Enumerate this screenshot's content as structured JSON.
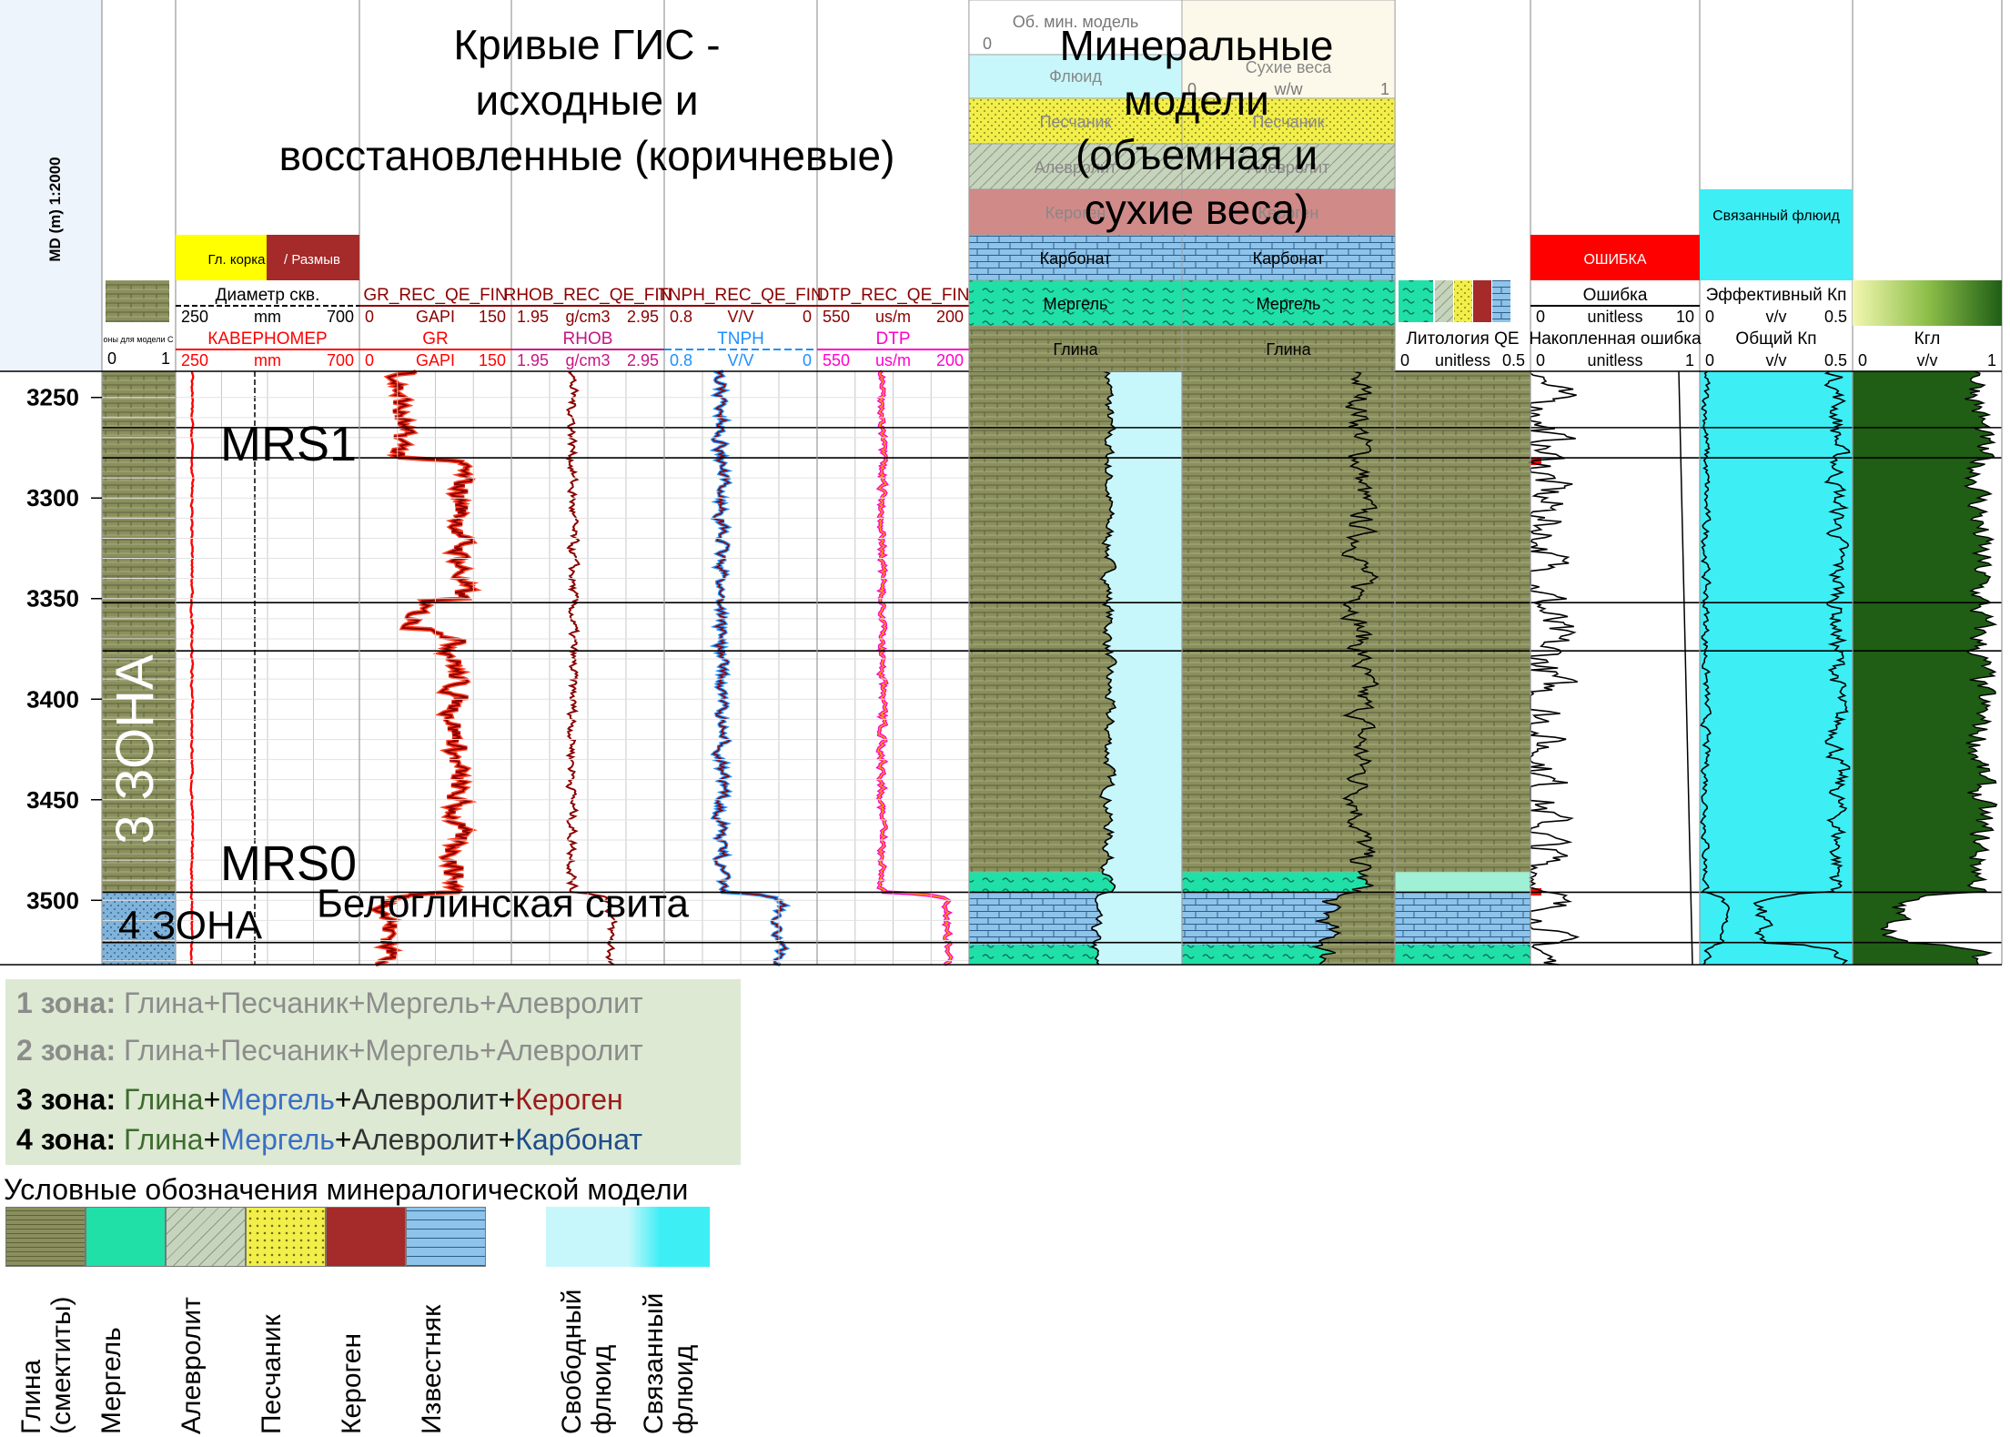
{
  "title_logs": [
    "Кривые ГИС -",
    "исходные и",
    "восстановленные (коричневые)"
  ],
  "title_mineral": [
    "Минеральные",
    "модели",
    "(объемная и",
    "сухие веса)"
  ],
  "depth_axis": {
    "label": "MD (m) 1:2000",
    "ticks": [
      "3250",
      "3300",
      "3350",
      "3400",
      "3450",
      "3500"
    ],
    "top_depth": 3237,
    "bottom_depth": 3532
  },
  "markers": {
    "mrs1": "MRS1",
    "mrs0": "MRS0",
    "zone3": "3 ЗОНА",
    "zone4": "4 ЗОНА",
    "suite": "Белоглинская свита",
    "zone_rows": [
      {
        "name": "3 зона",
        "top_depth": 3237,
        "bottom_depth": 3496,
        "color": "#8a8f5e"
      },
      {
        "name": "4 зона",
        "top_depth": 3496,
        "bottom_depth": 3532,
        "color": "#7fb3d9"
      }
    ],
    "horizons": [
      3265,
      3280,
      3352,
      3376,
      3496,
      3521
    ]
  },
  "track_headers": {
    "zones": {
      "scale_left": "0",
      "scale_right": "1",
      "caption": "оны для модели С"
    },
    "caliper": {
      "legend_left": "Гл. корка",
      "legend_right": "/ Размыв",
      "bit": {
        "name": "Диаметр скв.",
        "left": "250",
        "unit": "mm",
        "right": "700"
      },
      "cal": {
        "name": "КАВЕРНОМЕР",
        "left": "250",
        "unit": "mm",
        "right": "700"
      }
    },
    "gr": {
      "rec": "GR_REC_QE_FIN",
      "name": "GR",
      "left": "0",
      "unit": "GAPI",
      "right": "150"
    },
    "rhob": {
      "rec": "RHOB_REC_QE_FIN",
      "name": "RHOB",
      "left": "1.95",
      "unit": "g/cm3",
      "right": "2.95"
    },
    "tnph": {
      "rec": "TNPH_REC_QE_FIN",
      "name": "TNPH",
      "left": "0.8",
      "unit": "V/V",
      "right": "0",
      "left2": "0.8",
      "unit2": "V/V",
      "right2": "0"
    },
    "dtp": {
      "rec": "DTP_REC_QE_FIN",
      "name": "DTP",
      "left": "550",
      "unit": "us/m",
      "right": "200"
    },
    "volume_model": {
      "title": "Об. мин. модель",
      "left": "0",
      "rows": [
        "Флюид",
        "Песчаник",
        "Алевролит",
        "Кероген",
        "Карбонат",
        "Мергель",
        "Глина"
      ]
    },
    "dry_weights": {
      "title": "Сухие веса",
      "left": "0",
      "unit": "w/w",
      "right": "1",
      "rows": [
        "Песчаник",
        "Алевролит",
        "Кероген",
        "Карбонат",
        "Мергель",
        "Глина"
      ]
    },
    "lithology": {
      "name": "Литология QE",
      "left": "0",
      "unit": "unitless",
      "right": "0.5"
    },
    "error": {
      "legend": "ОШИБКА",
      "err": {
        "name": "Ошибка",
        "left": "0",
        "unit": "unitless",
        "right": "10"
      },
      "cum": {
        "name": "Накопленная ошибка",
        "left": "0",
        "unit": "unitless",
        "right": "1"
      }
    },
    "porosity": {
      "legend": "Связанный флюид",
      "eff": {
        "name": "Эффективный Кп",
        "left": "0",
        "unit": "v/v",
        "right": "0.5"
      },
      "tot": {
        "name": "Общий Кп",
        "left": "0",
        "unit": "v/v",
        "right": "0.5"
      }
    },
    "vclay": {
      "name": "Кгл",
      "left": "0",
      "unit": "v/v",
      "right": "1"
    }
  },
  "zones_legend": [
    {
      "zone": "1 зона:",
      "parts": [
        {
          "text": "Глина+Песчаник+Мергель+Алевролит",
          "color": "#8c8c8c"
        }
      ],
      "zone_color": "#8c8c8c"
    },
    {
      "zone": "2 зона:",
      "parts": [
        {
          "text": "Глина+Песчаник+Мергель+Алевролит",
          "color": "#8c8c8c"
        }
      ],
      "zone_color": "#8c8c8c"
    },
    {
      "zone": "3 зона:",
      "parts": [
        {
          "text": "Глина",
          "color": "#3d6b2e"
        },
        {
          "text": "+",
          "color": "#000000"
        },
        {
          "text": "Мергель",
          "color": "#3b6fc4"
        },
        {
          "text": "+",
          "color": "#000000"
        },
        {
          "text": "Алевролит",
          "color": "#333333"
        },
        {
          "text": "+",
          "color": "#000000"
        },
        {
          "text": "Кероген",
          "color": "#9b1c1c"
        }
      ],
      "zone_color": "#000000"
    },
    {
      "zone": "4 зона:",
      "parts": [
        {
          "text": "Глина",
          "color": "#3d6b2e"
        },
        {
          "text": "+",
          "color": "#000000"
        },
        {
          "text": "Мергель",
          "color": "#3b6fc4"
        },
        {
          "text": "+",
          "color": "#000000"
        },
        {
          "text": "Алевролит",
          "color": "#333333"
        },
        {
          "text": "+",
          "color": "#000000"
        },
        {
          "text": "Карбонат",
          "color": "#1f4e8c"
        }
      ],
      "zone_color": "#000000"
    }
  ],
  "legend": {
    "title": "Условные обозначения минералогической модели",
    "items": [
      {
        "key": "clay",
        "label": "Глина (смектиты)",
        "lines": [
          "Глина",
          "(смектиты)"
        ]
      },
      {
        "key": "marl",
        "label": "Мергель",
        "lines": [
          "Мергель"
        ]
      },
      {
        "key": "silt",
        "label": "Алевролит",
        "lines": [
          "Алевролит"
        ]
      },
      {
        "key": "sand",
        "label": "Песчаник",
        "lines": [
          "Песчаник"
        ]
      },
      {
        "key": "kero",
        "label": "Кероген",
        "lines": [
          "Кероген"
        ]
      },
      {
        "key": "lime",
        "label": "Известняк",
        "lines": [
          "Известняк"
        ]
      },
      {
        "key": "free",
        "label": "Свободный флюид",
        "lines": [
          "Свободный",
          "флюид"
        ]
      },
      {
        "key": "bound",
        "label": "Связанный флюид",
        "lines": [
          "Связанный",
          "флюид"
        ]
      }
    ]
  },
  "colors": {
    "clay": "#8a8f5e",
    "marl": "#20e0a8",
    "silt": "#c7d4bd",
    "sand": "#f2ee4a",
    "kero": "#d08a88",
    "kero_dark": "#a52a2a",
    "lime": "#8ec3ea",
    "fluid_light": "#c8f7fb",
    "fluid_bound": "#3deef5",
    "gr_rec": "#8b0000",
    "rhob": "#8b0000",
    "tnph": "#1e90ff",
    "dtp": "#ff00cc",
    "dtp_rec": "#8b0000",
    "grid": "#000000",
    "vclay": "#1f5e14"
  }
}
